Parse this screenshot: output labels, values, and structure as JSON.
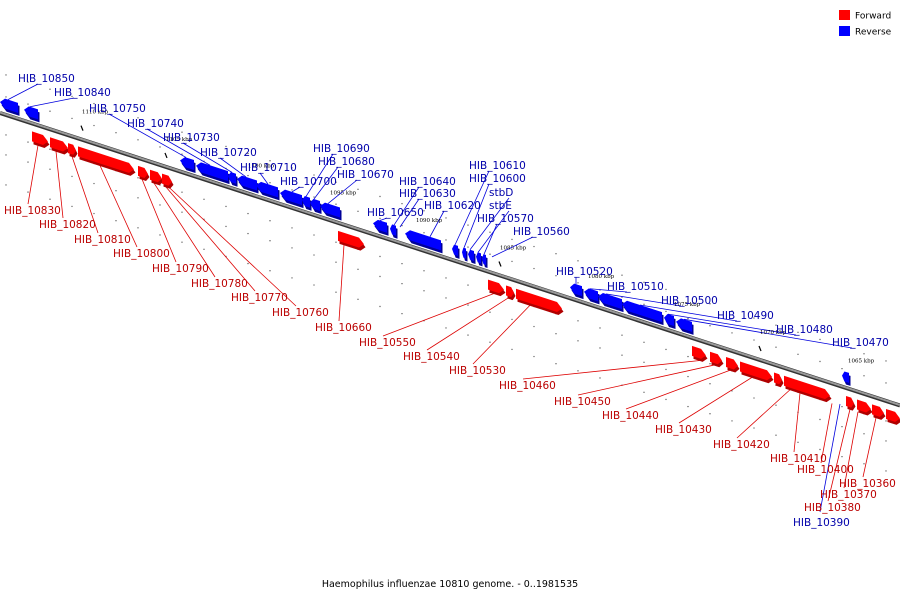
{
  "caption": "Haemophilus influenzae 10810 genome. - 0..1981535",
  "legend": [
    {
      "label": "Forward",
      "color": "#ff0000"
    },
    {
      "label": "Reverse",
      "color": "#0000ff"
    }
  ],
  "colors": {
    "forward": "#ff0000",
    "forward_dark": "#b00000",
    "forward_line": "#dd0000",
    "forward_text": "#bb0000",
    "reverse": "#0000ff",
    "reverse_dark": "#000099",
    "reverse_line": "#0000dd",
    "reverse_text": "#0000aa",
    "backbone": "#999999",
    "backbone_edge": "#333333"
  },
  "ticks": [
    "1110 kbp",
    "1105 kbp",
    "1100 kbp",
    "1095 kbp",
    "1090 kbp",
    "1085 kbp",
    "1080 kbp",
    "1075 kbp",
    "1070 kbp",
    "1065 kbp"
  ],
  "reverse_genes": [
    "HIB_10850",
    "HIB_10840",
    "HIB_10750",
    "HIB_10740",
    "HIB_10730",
    "HIB_10720",
    "HIB_10710",
    "HIB_10700",
    "HIB_10690",
    "HIB_10680",
    "HIB_10670",
    "HIB_10650",
    "HIB_10640",
    "HIB_10630",
    "HIB_10620",
    "HIB_10610",
    "HIB_10600",
    "stbD",
    "stbE",
    "HIB_10570",
    "HIB_10560",
    "HIB_10520",
    "HIB_10510",
    "HIB_10500",
    "HIB_10490",
    "HIB_10480",
    "HIB_10470",
    "HIB_10390"
  ],
  "forward_genes": [
    "HIB_10830",
    "HIB_10820",
    "HIB_10810",
    "HIB_10800",
    "HIB_10790",
    "HIB_10780",
    "HIB_10770",
    "HIB_10760",
    "HIB_10660",
    "HIB_10550",
    "HIB_10540",
    "HIB_10530",
    "HIB_10460",
    "HIB_10450",
    "HIB_10440",
    "HIB_10430",
    "HIB_10420",
    "HIB_10410",
    "HIB_10400",
    "HIB_10380",
    "HIB_10370",
    "HIB_10360"
  ]
}
